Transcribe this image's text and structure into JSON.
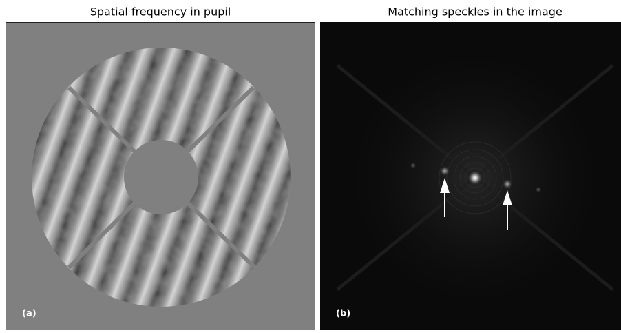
{
  "panels": [
    {
      "title": "Spatial frequency in pupil",
      "label": "(a)"
    },
    {
      "title": "Matching speckles in the image",
      "label": "(b)"
    }
  ]
}
